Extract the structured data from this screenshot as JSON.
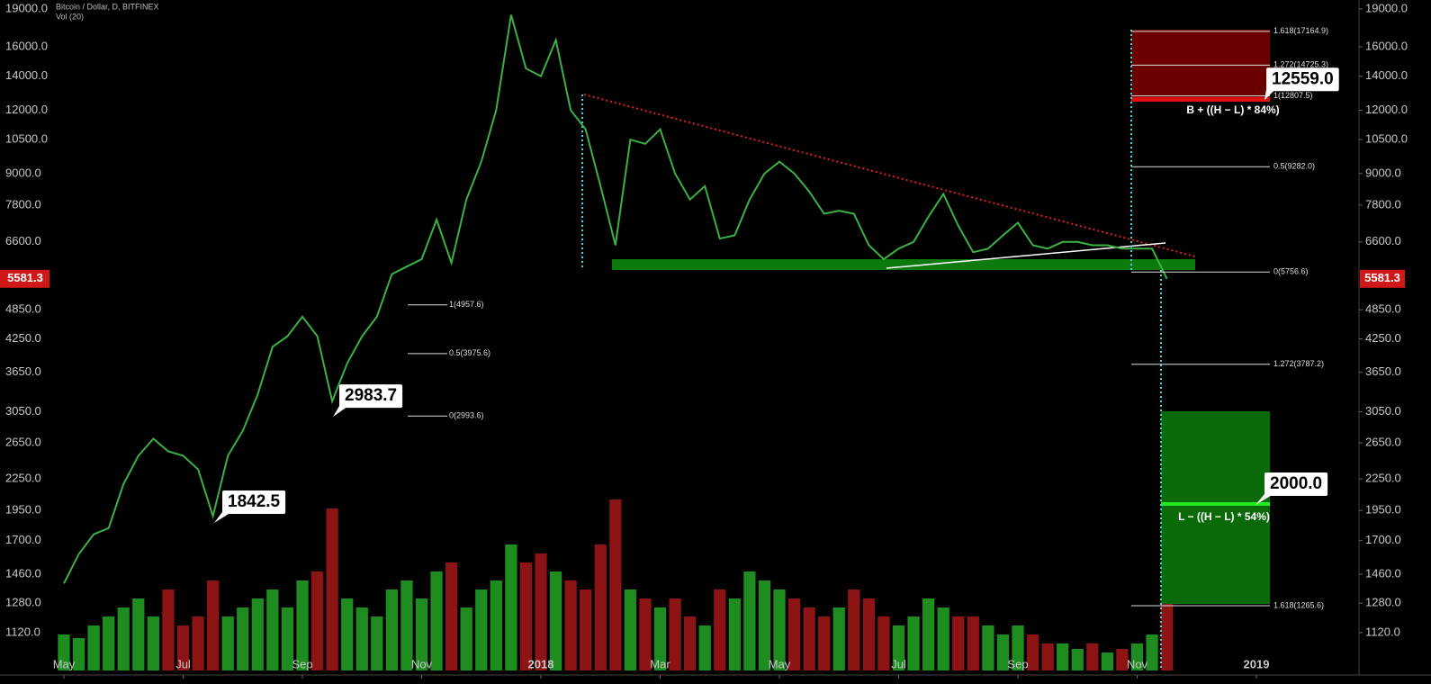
{
  "header": {
    "symbol": "Bitcoin / Dollar, D, BITFINEX",
    "indicator": "Vol (20)"
  },
  "chart_data": {
    "type": "line",
    "log_scale": true,
    "categories": [
      "May",
      null,
      null,
      null,
      null,
      null,
      null,
      null,
      "Jul",
      null,
      null,
      null,
      null,
      null,
      null,
      null,
      "Sep",
      null,
      null,
      null,
      null,
      null,
      null,
      null,
      "Nov",
      null,
      null,
      null,
      null,
      null,
      null,
      null,
      "2018",
      null,
      null,
      null,
      null,
      null,
      null,
      null,
      "Mar",
      null,
      null,
      null,
      null,
      null,
      null,
      null,
      "May",
      null,
      null,
      null,
      null,
      null,
      null,
      null,
      "Jul",
      null,
      null,
      null,
      null,
      null,
      null,
      null,
      "Sep",
      null,
      null,
      null,
      null,
      null,
      null,
      null,
      "Nov",
      null,
      null,
      null,
      null,
      null,
      null,
      null,
      "2019"
    ],
    "values": [
      1400,
      1600,
      1750,
      1800,
      2200,
      2500,
      2700,
      2550,
      2500,
      2350,
      1900,
      2500,
      2800,
      3300,
      4100,
      4300,
      4700,
      4300,
      3200,
      3800,
      4300,
      4700,
      5700,
      5900,
      6100,
      7300,
      6000,
      8000,
      9500,
      12000,
      18500,
      14500,
      14000,
      16500,
      12000,
      11000,
      8500,
      6500,
      10500,
      10300,
      11000,
      9000,
      8000,
      8500,
      6700,
      6800,
      8000,
      9000,
      9500,
      9000,
      8300,
      7500,
      7600,
      7500,
      6500,
      6100,
      6400,
      6600,
      7400,
      8200,
      7100,
      6300,
      6400,
      6800,
      7200,
      6500,
      6400,
      6600,
      6600,
      6500,
      6500,
      6400,
      6400,
      6400,
      5581.3,
      null,
      null,
      null,
      null,
      null,
      null
    ],
    "color": "#3cb043",
    "volume": {
      "values": [
        20,
        18,
        25,
        30,
        35,
        40,
        30,
        45,
        25,
        30,
        50,
        30,
        35,
        40,
        45,
        35,
        50,
        55,
        90,
        40,
        35,
        30,
        45,
        50,
        40,
        55,
        60,
        35,
        45,
        50,
        70,
        60,
        65,
        55,
        50,
        45,
        70,
        95,
        45,
        40,
        35,
        40,
        30,
        25,
        45,
        40,
        55,
        50,
        45,
        40,
        35,
        30,
        35,
        45,
        40,
        30,
        25,
        30,
        40,
        35,
        30,
        30,
        25,
        20,
        25,
        20,
        15,
        15,
        12,
        15,
        10,
        12,
        15,
        20,
        65,
        null,
        null,
        null,
        null,
        null,
        null
      ],
      "up_color": "#1e8c1e",
      "down_color": "#8c1414"
    },
    "ylim": [
      943,
      19790
    ],
    "yticks": [
      {
        "value": 19000,
        "label": "19000.0"
      },
      {
        "value": 16000,
        "label": "16000.0"
      },
      {
        "value": 14000,
        "label": "14000.0"
      },
      {
        "value": 12000,
        "label": "12000.0"
      },
      {
        "value": 10500,
        "label": "10500.0"
      },
      {
        "value": 9000,
        "label": "9000.0"
      },
      {
        "value": 7800,
        "label": "7800.0"
      },
      {
        "value": 6600,
        "label": "6600.0"
      },
      {
        "value": 4850,
        "label": "4850.0"
      },
      {
        "value": 4250,
        "label": "4250.0"
      },
      {
        "value": 3650,
        "label": "3650.0"
      },
      {
        "value": 3050,
        "label": "3050.0"
      },
      {
        "value": 2650,
        "label": "2650.0"
      },
      {
        "value": 2250,
        "label": "2250.0"
      },
      {
        "value": 1950,
        "label": "1950.0"
      },
      {
        "value": 1700,
        "label": "1700.0"
      },
      {
        "value": 1460,
        "label": "1460.0"
      },
      {
        "value": 1280,
        "label": "1280.0"
      },
      {
        "value": 1120,
        "label": "1120.0"
      }
    ],
    "last_price": 5581.3,
    "fib_levels_left": [
      {
        "value": 4957.6,
        "label": "1(4957.6)"
      },
      {
        "value": 3975.6,
        "label": "0.5(3975.6)"
      },
      {
        "value": 2993.6,
        "label": "0(2993.6)"
      }
    ],
    "fib_levels_right": [
      {
        "value": 17164.9,
        "label": "1.618(17164.9)"
      },
      {
        "value": 14725.3,
        "label": "1.272(14725.3)"
      },
      {
        "value": 12807.5,
        "label": "1(12807.5)"
      },
      {
        "value": 9282.0,
        "label": "0.5(9282.0)"
      },
      {
        "value": 5756.6,
        "label": "0(5756.6)"
      },
      {
        "value": 3787.2,
        "label": "1.272(3787.2)"
      },
      {
        "value": 1265.6,
        "label": "1.618(1265.6)"
      }
    ],
    "callouts": [
      {
        "value": 12559,
        "label": "12559.0"
      },
      {
        "value": 2983.7,
        "label": "2983.7"
      },
      {
        "value": 1842.5,
        "label": "1842.5"
      },
      {
        "value": 2000,
        "label": "2000.0"
      }
    ],
    "annotations": [
      "B + ((H − L) * 84%)",
      "L − ((H − L) * 54%)"
    ]
  }
}
